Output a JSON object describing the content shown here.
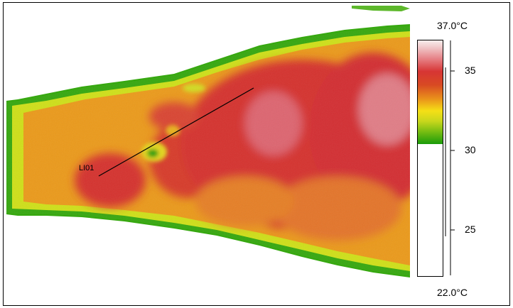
{
  "window": {
    "title": ""
  },
  "scale": {
    "max_label": "37.0°C",
    "min_label": "22.0°C",
    "tick_labels": [
      "35",
      "30",
      "25"
    ],
    "colors": [
      "#f8eeec",
      "#e67f84",
      "#d73534",
      "#e98f1b",
      "#f5df16",
      "#78bd12",
      "#1a9b0a"
    ]
  },
  "measurement": {
    "line_label": "LI01"
  },
  "thermal_palette": {
    "cold": "#0f9b08",
    "mid": "#f0df16",
    "warm": "#ea8a1a",
    "hot": "#d5312e",
    "hottest": "#e6a4a8"
  }
}
